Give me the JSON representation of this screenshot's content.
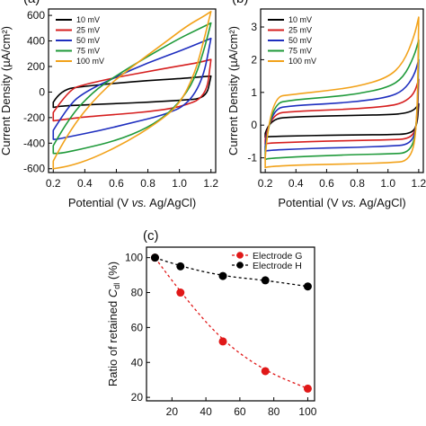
{
  "chart_data": [
    {
      "panel": "a",
      "panel_label": "(a)",
      "type": "line",
      "xlabel": "Potential (V vs. Ag/AgCl)",
      "ylabel": "Current Density (µA/cm²)",
      "xlim": [
        0.17,
        1.23
      ],
      "ylim": [
        -630,
        650
      ],
      "x_ticks": [
        0.2,
        0.4,
        0.6,
        0.8,
        1.0,
        1.2
      ],
      "x_tick_labels": [
        "0.2",
        "0.4",
        "0.6",
        "0.8",
        "1.0",
        "1.2"
      ],
      "y_ticks": [
        -600,
        -400,
        -200,
        0,
        200,
        400,
        600
      ],
      "y_tick_labels": [
        "-600",
        "-400",
        "-200",
        "0",
        "200",
        "400",
        "600"
      ],
      "legend_position": "top-left",
      "series": [
        {
          "name": "10 mV",
          "color": "#000000",
          "top": [
            [
              0.2,
              -80
            ],
            [
              0.25,
              20
            ],
            [
              0.4,
              45
            ],
            [
              0.6,
              70
            ],
            [
              0.8,
              90
            ],
            [
              1.0,
              105
            ],
            [
              1.1,
              115
            ],
            [
              1.2,
              125
            ]
          ],
          "bottom": [
            [
              1.2,
              125
            ],
            [
              1.17,
              -50
            ],
            [
              1.0,
              -65
            ],
            [
              0.8,
              -80
            ],
            [
              0.6,
              -90
            ],
            [
              0.4,
              -100
            ],
            [
              0.25,
              -110
            ],
            [
              0.2,
              -120
            ]
          ]
        },
        {
          "name": "25 mV",
          "color": "#d61f1f",
          "top": [
            [
              0.2,
              -160
            ],
            [
              0.3,
              20
            ],
            [
              0.4,
              60
            ],
            [
              0.6,
              115
            ],
            [
              0.8,
              160
            ],
            [
              1.0,
              205
            ],
            [
              1.1,
              225
            ],
            [
              1.2,
              255
            ]
          ],
          "bottom": [
            [
              1.2,
              255
            ],
            [
              1.17,
              -40
            ],
            [
              1.0,
              -120
            ],
            [
              0.8,
              -155
            ],
            [
              0.6,
              -175
            ],
            [
              0.4,
              -195
            ],
            [
              0.3,
              -210
            ],
            [
              0.2,
              -225
            ]
          ]
        },
        {
          "name": "50 mV",
          "color": "#1f2fbf",
          "top": [
            [
              0.2,
              -300
            ],
            [
              0.3,
              -100
            ],
            [
              0.4,
              0
            ],
            [
              0.6,
              120
            ],
            [
              0.8,
              230
            ],
            [
              1.0,
              320
            ],
            [
              1.1,
              370
            ],
            [
              1.2,
              420
            ]
          ],
          "bottom": [
            [
              1.2,
              420
            ],
            [
              1.15,
              100
            ],
            [
              1.05,
              -100
            ],
            [
              0.9,
              -180
            ],
            [
              0.7,
              -240
            ],
            [
              0.5,
              -300
            ],
            [
              0.3,
              -350
            ],
            [
              0.22,
              -370
            ],
            [
              0.2,
              -370
            ]
          ]
        },
        {
          "name": "75 mV",
          "color": "#1f9a3a",
          "top": [
            [
              0.2,
              -420
            ],
            [
              0.3,
              -200
            ],
            [
              0.45,
              0
            ],
            [
              0.6,
              130
            ],
            [
              0.8,
              280
            ],
            [
              1.0,
              420
            ],
            [
              1.1,
              480
            ],
            [
              1.2,
              540
            ]
          ],
          "bottom": [
            [
              1.2,
              540
            ],
            [
              1.15,
              300
            ],
            [
              1.08,
              50
            ],
            [
              0.95,
              -150
            ],
            [
              0.8,
              -280
            ],
            [
              0.6,
              -380
            ],
            [
              0.4,
              -440
            ],
            [
              0.25,
              -480
            ],
            [
              0.2,
              -480
            ]
          ]
        },
        {
          "name": "100 mV",
          "color": "#f2a21a",
          "top": [
            [
              0.2,
              -540
            ],
            [
              0.3,
              -300
            ],
            [
              0.5,
              0
            ],
            [
              0.7,
              200
            ],
            [
              0.9,
              380
            ],
            [
              1.05,
              520
            ],
            [
              1.15,
              590
            ],
            [
              1.2,
              630
            ]
          ],
          "bottom": [
            [
              1.2,
              630
            ],
            [
              1.16,
              430
            ],
            [
              1.1,
              150
            ],
            [
              1.0,
              -100
            ],
            [
              0.85,
              -250
            ],
            [
              0.65,
              -400
            ],
            [
              0.45,
              -520
            ],
            [
              0.3,
              -580
            ],
            [
              0.2,
              -600
            ]
          ]
        }
      ]
    },
    {
      "panel": "b",
      "panel_label": "(b)",
      "type": "line",
      "xlabel": "Potential (V vs. Ag/AgCl)",
      "ylabel": "Current Density (µA/cm²)",
      "xlim": [
        0.17,
        1.23
      ],
      "ylim": [
        -1.45,
        3.55
      ],
      "x_ticks": [
        0.2,
        0.4,
        0.6,
        0.8,
        1.0,
        1.2
      ],
      "x_tick_labels": [
        "0.2",
        "0.4",
        "0.6",
        "0.8",
        "1.0",
        "1.2"
      ],
      "y_ticks": [
        -1,
        0,
        1,
        2,
        3
      ],
      "y_tick_labels": [
        "-1",
        "0",
        "1",
        "2",
        "3"
      ],
      "legend_position": "top-left",
      "series": [
        {
          "name": "10 mV",
          "color": "#000000",
          "top": [
            [
              0.2,
              -0.25
            ],
            [
              0.23,
              0.2
            ],
            [
              0.4,
              0.25
            ],
            [
              0.6,
              0.28
            ],
            [
              0.8,
              0.3
            ],
            [
              1.0,
              0.32
            ],
            [
              1.1,
              0.35
            ],
            [
              1.17,
              0.45
            ],
            [
              1.2,
              0.65
            ]
          ],
          "bottom": [
            [
              1.2,
              0.65
            ],
            [
              1.19,
              0.0
            ],
            [
              1.15,
              -0.27
            ],
            [
              1.0,
              -0.29
            ],
            [
              0.8,
              -0.3
            ],
            [
              0.6,
              -0.31
            ],
            [
              0.4,
              -0.33
            ],
            [
              0.22,
              -0.35
            ],
            [
              0.2,
              -0.38
            ]
          ]
        },
        {
          "name": "25 mV",
          "color": "#d61f1f",
          "top": [
            [
              0.2,
              -0.45
            ],
            [
              0.23,
              0.35
            ],
            [
              0.4,
              0.42
            ],
            [
              0.6,
              0.46
            ],
            [
              0.8,
              0.5
            ],
            [
              1.0,
              0.58
            ],
            [
              1.1,
              0.68
            ],
            [
              1.17,
              0.95
            ],
            [
              1.2,
              1.4
            ]
          ],
          "bottom": [
            [
              1.2,
              1.4
            ],
            [
              1.19,
              0.0
            ],
            [
              1.15,
              -0.42
            ],
            [
              1.0,
              -0.45
            ],
            [
              0.8,
              -0.47
            ],
            [
              0.6,
              -0.49
            ],
            [
              0.4,
              -0.52
            ],
            [
              0.22,
              -0.55
            ],
            [
              0.2,
              -0.58
            ]
          ]
        },
        {
          "name": "50 mV",
          "color": "#1f2fbf",
          "top": [
            [
              0.2,
              -0.65
            ],
            [
              0.23,
              0.5
            ],
            [
              0.4,
              0.6
            ],
            [
              0.6,
              0.65
            ],
            [
              0.8,
              0.72
            ],
            [
              1.0,
              0.85
            ],
            [
              1.1,
              1.05
            ],
            [
              1.17,
              1.5
            ],
            [
              1.2,
              2.0
            ]
          ],
          "bottom": [
            [
              1.2,
              2.0
            ],
            [
              1.19,
              0.0
            ],
            [
              1.15,
              -0.6
            ],
            [
              1.0,
              -0.64
            ],
            [
              0.8,
              -0.68
            ],
            [
              0.6,
              -0.7
            ],
            [
              0.4,
              -0.73
            ],
            [
              0.22,
              -0.77
            ],
            [
              0.2,
              -0.8
            ]
          ]
        },
        {
          "name": "75 mV",
          "color": "#1f9a3a",
          "top": [
            [
              0.2,
              -0.85
            ],
            [
              0.23,
              0.65
            ],
            [
              0.4,
              0.78
            ],
            [
              0.6,
              0.85
            ],
            [
              0.8,
              0.95
            ],
            [
              1.0,
              1.15
            ],
            [
              1.1,
              1.45
            ],
            [
              1.17,
              2.1
            ],
            [
              1.2,
              2.6
            ]
          ],
          "bottom": [
            [
              1.2,
              2.6
            ],
            [
              1.19,
              0.0
            ],
            [
              1.15,
              -0.85
            ],
            [
              1.0,
              -0.88
            ],
            [
              0.8,
              -0.9
            ],
            [
              0.6,
              -0.93
            ],
            [
              0.4,
              -0.97
            ],
            [
              0.22,
              -1.02
            ],
            [
              0.2,
              -1.05
            ]
          ]
        },
        {
          "name": "100 mV",
          "color": "#f2a21a",
          "top": [
            [
              0.2,
              -1.0
            ],
            [
              0.23,
              0.85
            ],
            [
              0.4,
              0.95
            ],
            [
              0.6,
              1.05
            ],
            [
              0.8,
              1.18
            ],
            [
              1.0,
              1.45
            ],
            [
              1.1,
              1.9
            ],
            [
              1.17,
              2.7
            ],
            [
              1.2,
              3.3
            ]
          ],
          "bottom": [
            [
              1.2,
              3.3
            ],
            [
              1.19,
              0.0
            ],
            [
              1.15,
              -1.1
            ],
            [
              1.0,
              -1.15
            ],
            [
              0.8,
              -1.18
            ],
            [
              0.6,
              -1.2
            ],
            [
              0.4,
              -1.22
            ],
            [
              0.22,
              -1.27
            ],
            [
              0.2,
              -1.3
            ]
          ]
        }
      ]
    },
    {
      "panel": "c",
      "panel_label": "(c)",
      "type": "scatter",
      "xlabel": "",
      "ylabel": "Ratio of retained Cdl (%)",
      "ylabel_prefix": "Ratio of retained ",
      "ylabel_var": "C",
      "ylabel_sub": "dl",
      "ylabel_suffix": " (%)",
      "xlim": [
        5,
        104
      ],
      "ylim": [
        18,
        106
      ],
      "x_ticks": [
        20,
        40,
        60,
        80,
        100
      ],
      "x_tick_labels": [
        "20",
        "40",
        "60",
        "80",
        "100"
      ],
      "y_ticks": [
        20,
        40,
        60,
        80,
        100
      ],
      "y_tick_labels": [
        "20",
        "40",
        "60",
        "80",
        "100"
      ],
      "legend_position": "top-right",
      "series": [
        {
          "name": "Electrode G",
          "color": "#e01818",
          "x": [
            10,
            25,
            50,
            75,
            100
          ],
          "y": [
            100,
            80,
            52,
            35,
            25
          ]
        },
        {
          "name": "Electrode H",
          "color": "#000000",
          "x": [
            10,
            25,
            50,
            75,
            100
          ],
          "y": [
            100,
            95,
            89.5,
            87,
            83.5
          ]
        }
      ]
    }
  ]
}
